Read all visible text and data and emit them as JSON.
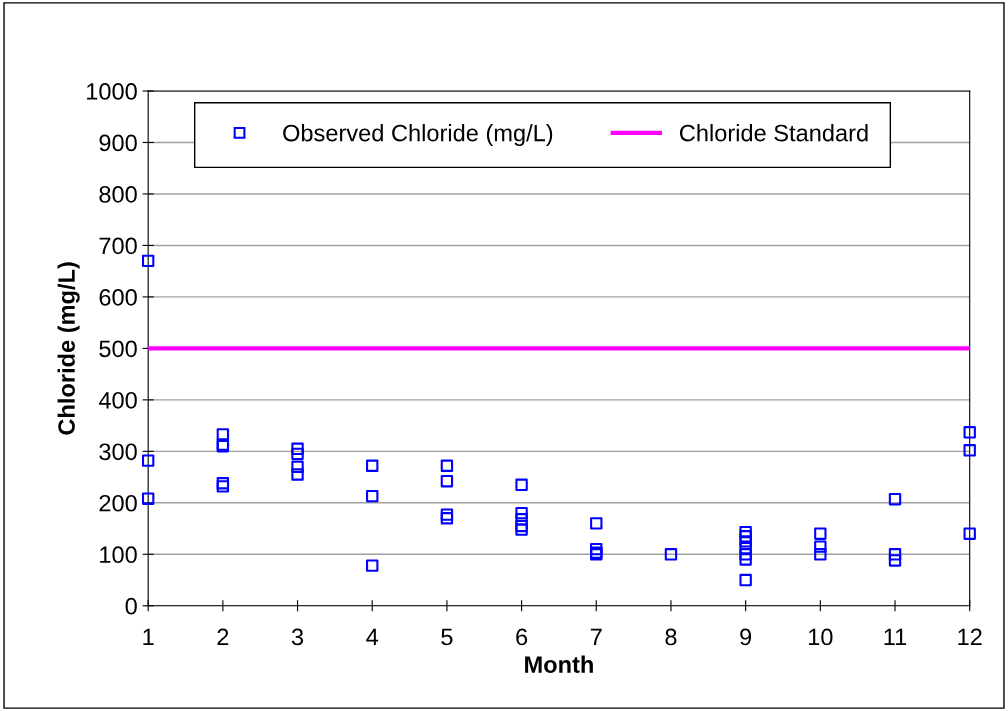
{
  "chart_data": {
    "type": "scatter",
    "xlabel": "Month",
    "ylabel": "Chloride (mg/L)",
    "x": [
      1,
      1,
      1,
      2,
      2,
      2,
      2,
      2,
      3,
      3,
      3,
      3,
      4,
      4,
      4,
      5,
      5,
      5,
      5,
      6,
      6,
      6,
      6,
      6,
      7,
      7,
      7,
      7,
      8,
      9,
      9,
      9,
      9,
      9,
      9,
      9,
      10,
      10,
      10,
      11,
      11,
      11,
      12,
      12,
      12
    ],
    "series": [
      {
        "name": "Observed Chloride (mg/L)",
        "color": "#0000ff",
        "values": [
          670,
          282,
          208,
          333,
          313,
          310,
          238,
          232,
          305,
          295,
          270,
          255,
          272,
          213,
          78,
          272,
          242,
          177,
          170,
          235,
          180,
          168,
          155,
          148,
          160,
          110,
          103,
          100,
          100,
          143,
          135,
          125,
          112,
          100,
          90,
          50,
          140,
          115,
          100,
          207,
          100,
          88,
          337,
          302,
          140
        ]
      }
    ],
    "ref_lines": [
      {
        "axis": "y",
        "value": 500,
        "label": "Chloride Standard",
        "color": "#ff00ff",
        "line_style": "solid"
      }
    ],
    "xlim": [
      1,
      12
    ],
    "xticks": [
      1,
      2,
      3,
      4,
      5,
      6,
      7,
      8,
      9,
      10,
      11,
      12
    ],
    "ylim": [
      0,
      1000
    ],
    "yticks": [
      0,
      100,
      200,
      300,
      400,
      500,
      600,
      700,
      800,
      900,
      1000
    ],
    "grid": "y",
    "legend": "top",
    "marker": "square"
  }
}
